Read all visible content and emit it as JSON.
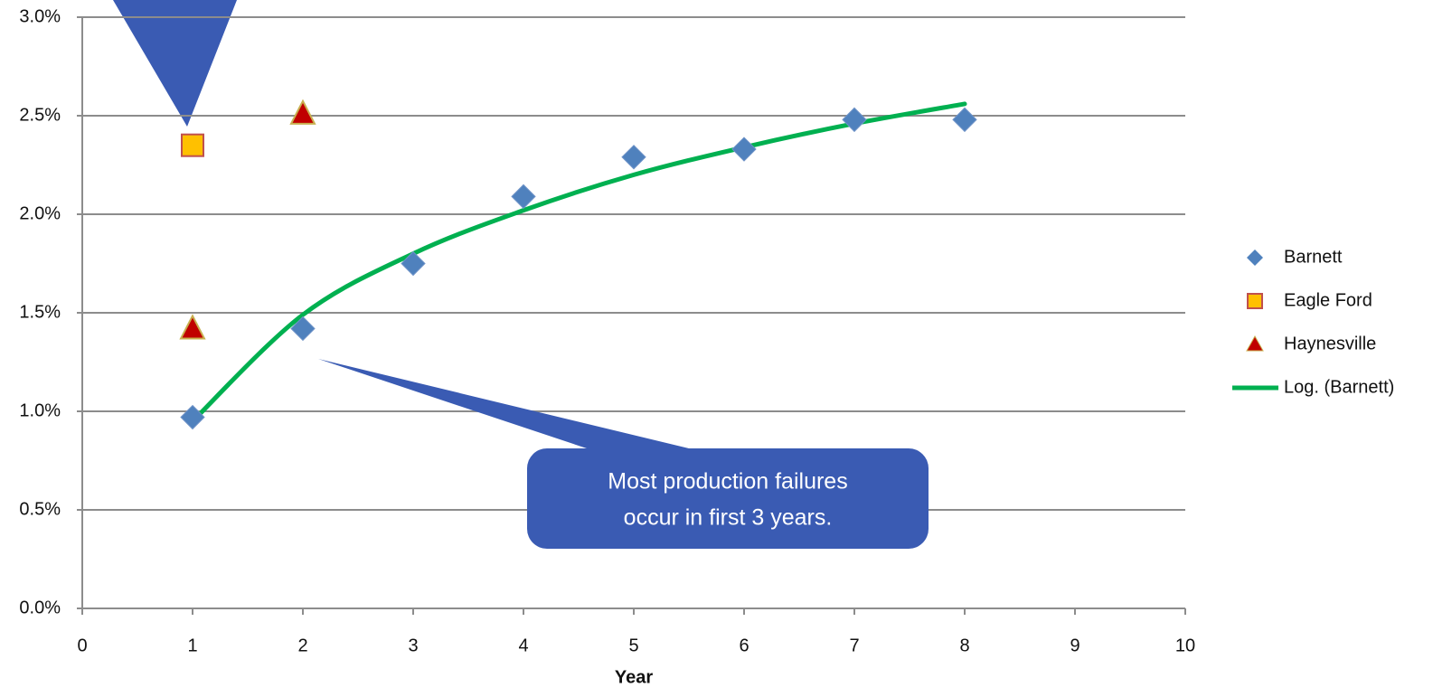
{
  "chart_data": {
    "type": "scatter",
    "xlabel": "Year",
    "xlim": [
      0,
      10
    ],
    "xticks": [
      0,
      1,
      2,
      3,
      4,
      5,
      6,
      7,
      8,
      9,
      10
    ],
    "ylim": [
      0,
      3
    ],
    "yticks": [
      {
        "value": 0,
        "label": "0.0%"
      },
      {
        "value": 0.5,
        "label": "0.5%"
      },
      {
        "value": 1,
        "label": "1.0%"
      },
      {
        "value": 1.5,
        "label": "1.5%"
      },
      {
        "value": 2,
        "label": "2.0%"
      },
      {
        "value": 2.5,
        "label": "2.5%"
      },
      {
        "value": 3,
        "label": "3.0%"
      }
    ],
    "grid": true,
    "legend": "right",
    "series": [
      {
        "name": "Barnett",
        "color": "#4f81bd",
        "marker": "diamond",
        "x": [
          1,
          2,
          3,
          4,
          5,
          6,
          7,
          8
        ],
        "values": [
          0.97,
          1.42,
          1.75,
          2.09,
          2.29,
          2.33,
          2.48,
          2.48
        ]
      },
      {
        "name": "Eagle Ford",
        "color": "#ffc000",
        "marker": "square",
        "x": [
          1
        ],
        "values": [
          2.35
        ]
      },
      {
        "name": "Haynesville",
        "color": "#c00000",
        "marker": "triangle",
        "x": [
          1,
          2
        ],
        "values": [
          1.42,
          2.51
        ]
      },
      {
        "name": "Log. (Barnett)",
        "color": "#00b050",
        "marker": "line",
        "x": [
          1,
          2,
          3,
          4,
          5,
          6,
          7,
          8
        ],
        "values": [
          0.95,
          1.49,
          1.8,
          2.02,
          2.2,
          2.34,
          2.46,
          2.56
        ]
      }
    ],
    "annotations": [
      {
        "lines": [
          "Most production failures",
          "occur in first 3 years."
        ]
      }
    ]
  }
}
